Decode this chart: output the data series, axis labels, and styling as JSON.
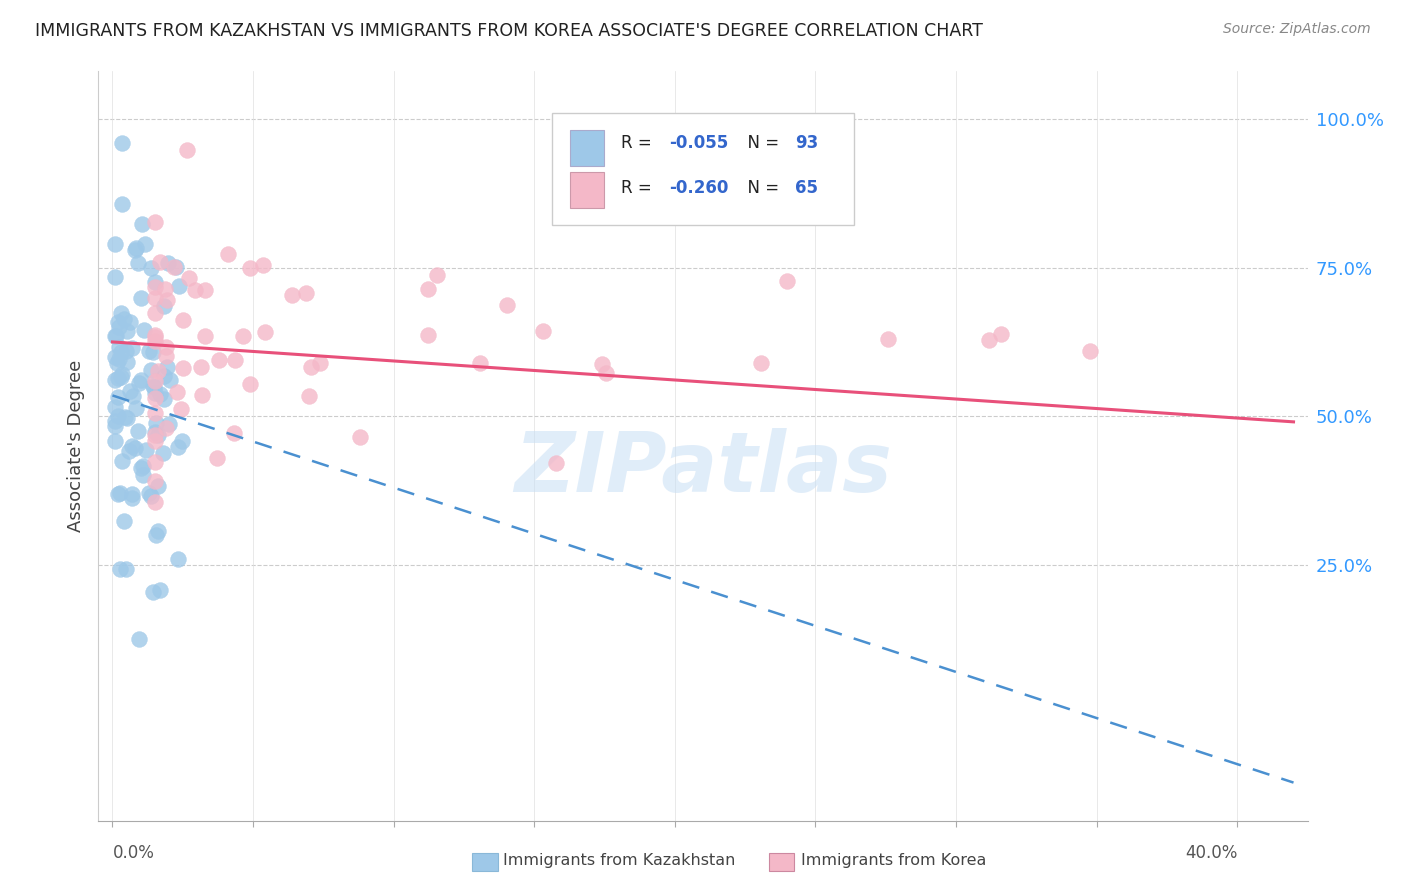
{
  "title": "IMMIGRANTS FROM KAZAKHSTAN VS IMMIGRANTS FROM KOREA ASSOCIATE'S DEGREE CORRELATION CHART",
  "source": "Source: ZipAtlas.com",
  "ylabel": "Associate's Degree",
  "y_tick_labels": [
    "100.0%",
    "75.0%",
    "50.0%",
    "25.0%"
  ],
  "y_tick_values": [
    1.0,
    0.75,
    0.5,
    0.25
  ],
  "kaz_color": "#9ec8e8",
  "kor_color": "#f4b8c8",
  "kaz_line_color": "#4a90d0",
  "kor_line_color": "#e8507a",
  "legend_text_color": "#3366cc",
  "watermark": "ZIPatlas",
  "watermark_color": "#c8dff5",
  "title_color": "#222222",
  "source_color": "#888888",
  "ylabel_color": "#444444",
  "right_axis_color": "#3399ff",
  "grid_color": "#cccccc",
  "bottom_label_color": "#555555",
  "kaz_line_intercept": 0.535,
  "kaz_line_slope": -1.55,
  "kor_line_intercept": 0.625,
  "kor_line_slope": -0.32
}
